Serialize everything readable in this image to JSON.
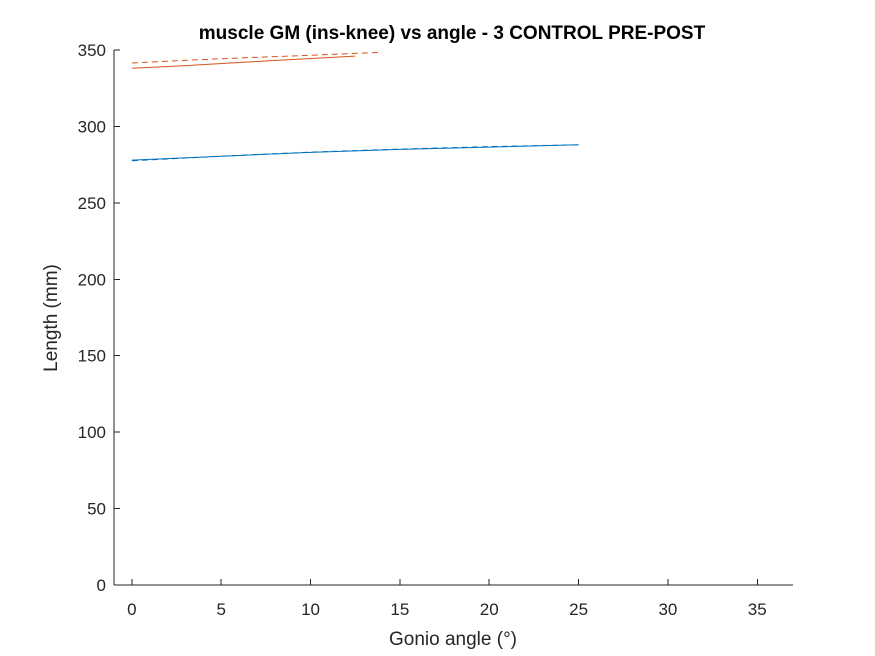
{
  "chart_data": {
    "type": "line",
    "title": "muscle GM (ins-knee) vs angle - 3 CONTROL PRE-POST",
    "xlabel": "Gonio angle (°)",
    "ylabel": "Length (mm)",
    "xlim": [
      -1,
      37
    ],
    "ylim": [
      0,
      350
    ],
    "xticks": [
      0,
      5,
      10,
      15,
      20,
      25,
      30,
      35
    ],
    "yticks": [
      0,
      50,
      100,
      150,
      200,
      250,
      300,
      350
    ],
    "grid": false,
    "box": false,
    "series": [
      {
        "color": "#0072BD",
        "dash": "solid",
        "x": [
          0,
          5,
          10,
          15,
          20,
          25
        ],
        "y": [
          278,
          280.5,
          283,
          285,
          286.5,
          288
        ]
      },
      {
        "color": "#0072BD",
        "dash": "dashed",
        "x": [
          0,
          5,
          10,
          15,
          20,
          25
        ],
        "y": [
          277.5,
          280.5,
          283.2,
          285.2,
          286.8,
          288
        ]
      },
      {
        "color": "#D95319",
        "dash": "solid",
        "x": [
          0,
          3,
          6,
          9,
          12.5
        ],
        "y": [
          338,
          339.8,
          341.8,
          343.8,
          346
        ]
      },
      {
        "color": "#D95319",
        "dash": "dashed",
        "x": [
          0,
          3.5,
          7,
          10.5,
          14
        ],
        "y": [
          341.5,
          343.5,
          345.2,
          346.8,
          348.5
        ]
      }
    ]
  }
}
